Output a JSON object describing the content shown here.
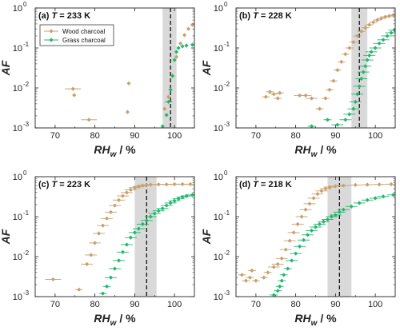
{
  "chart_data": [
    {
      "type": "scatter",
      "panel_label": "(a) T = 233 K",
      "panel_prefix": "(a) ",
      "panel_var": "T",
      "panel_suffix": " = 233 K",
      "xlabel_main": "RH",
      "xlabel_sub": "w",
      "xlabel_unit": " / %",
      "ylabel": "AF",
      "xlim": [
        65,
        105
      ],
      "ylim": [
        0.001,
        1
      ],
      "yscale": "log",
      "xticks": [
        "70",
        "80",
        "90",
        "100"
      ],
      "yticks": [
        "10",
        "10",
        "10",
        "10"
      ],
      "ytick_exponents": [
        "-3",
        "-2",
        "-1",
        "0"
      ],
      "threshold_line_x": 99,
      "shaded_band": [
        97,
        100.5
      ],
      "legend": {
        "placement": "top-left",
        "entries": [
          "Wood charcoal",
          "Grass charcoal"
        ]
      },
      "series": [
        {
          "name": "Wood charcoal",
          "color": "#c8a06e",
          "points": [
            [
              74.5,
              0.0095,
              2
            ],
            [
              74.8,
              0.0066,
              0
            ],
            [
              78.5,
              0.0016,
              2
            ],
            [
              88.5,
              0.013,
              0
            ],
            [
              88.2,
              0.0025,
              0
            ],
            [
              97.5,
              0.003,
              0
            ],
            [
              98.5,
              0.006,
              0
            ],
            [
              99.5,
              0.02,
              0
            ],
            [
              100.5,
              0.06,
              0
            ],
            [
              101.5,
              0.13,
              0
            ],
            [
              102.5,
              0.21,
              0
            ],
            [
              103.5,
              0.3,
              0
            ],
            [
              104.5,
              0.38,
              0
            ]
          ]
        },
        {
          "name": "Grass charcoal",
          "color": "#23b871",
          "points": [
            [
              97.0,
              0.0011,
              0
            ],
            [
              98.0,
              0.0021,
              0
            ],
            [
              98.5,
              0.0045,
              1
            ],
            [
              99.0,
              0.009,
              0
            ],
            [
              99.5,
              0.02,
              0
            ],
            [
              100.0,
              0.05,
              0
            ],
            [
              100.5,
              0.08,
              0
            ],
            [
              101.0,
              0.1,
              0
            ],
            [
              102.0,
              0.11,
              0
            ],
            [
              103.0,
              0.115,
              0
            ],
            [
              104.5,
              0.12,
              0
            ]
          ]
        }
      ]
    },
    {
      "type": "scatter",
      "panel_label": "(b) T = 228 K",
      "panel_prefix": "(b) ",
      "panel_var": "T",
      "panel_suffix": " = 228 K",
      "xlabel_main": "RH",
      "xlabel_sub": "w",
      "xlabel_unit": " / %",
      "ylabel": "AF",
      "xlim": [
        65,
        105
      ],
      "ylim": [
        0.001,
        1
      ],
      "yscale": "log",
      "xticks": [
        "70",
        "80",
        "90",
        "100"
      ],
      "yticks": [
        "10",
        "10",
        "10",
        "10"
      ],
      "ytick_exponents": [
        "-3",
        "-2",
        "-1",
        "0"
      ],
      "threshold_line_x": 96,
      "shaded_band": [
        94,
        98
      ],
      "legend": null,
      "series": [
        {
          "name": "Wood charcoal",
          "color": "#c8a06e",
          "points": [
            [
              72.5,
              0.006,
              1
            ],
            [
              73.5,
              0.008,
              1
            ],
            [
              74.5,
              0.007,
              1
            ],
            [
              75.5,
              0.0055,
              1
            ],
            [
              76.0,
              0.0075,
              1
            ],
            [
              81.0,
              0.0065,
              1.5
            ],
            [
              82.5,
              0.0065,
              1.5
            ],
            [
              84.0,
              0.0055,
              1.5
            ],
            [
              86.0,
              0.003,
              1
            ],
            [
              87.5,
              0.0055,
              1
            ],
            [
              88.5,
              0.009,
              1
            ],
            [
              89.5,
              0.015,
              1
            ],
            [
              90.5,
              0.028,
              1
            ],
            [
              91.5,
              0.045,
              1
            ],
            [
              92.5,
              0.07,
              1
            ],
            [
              93.5,
              0.1,
              1
            ],
            [
              94.5,
              0.14,
              1
            ],
            [
              95.5,
              0.2,
              1
            ],
            [
              96.5,
              0.26,
              1
            ],
            [
              97.5,
              0.32,
              1
            ],
            [
              98.5,
              0.38,
              1
            ],
            [
              99.5,
              0.44,
              1
            ],
            [
              100.5,
              0.5,
              1
            ],
            [
              101.5,
              0.55,
              1
            ],
            [
              102.5,
              0.6,
              1
            ],
            [
              103.5,
              0.63,
              1
            ],
            [
              104.5,
              0.66,
              1
            ]
          ]
        },
        {
          "name": "Grass charcoal",
          "color": "#23b871",
          "points": [
            [
              84.0,
              0.0011,
              1
            ],
            [
              88.0,
              0.0016,
              1
            ],
            [
              90.5,
              0.0012,
              1.5
            ],
            [
              92.5,
              0.0016,
              1.5
            ],
            [
              93.5,
              0.0022,
              1.5
            ],
            [
              94.5,
              0.003,
              1.5
            ],
            [
              95.0,
              0.0045,
              1.5
            ],
            [
              95.5,
              0.007,
              1.5
            ],
            [
              96.0,
              0.011,
              1.5
            ],
            [
              96.5,
              0.017,
              1.5
            ],
            [
              97.0,
              0.025,
              1.5
            ],
            [
              97.5,
              0.035,
              1.5
            ],
            [
              98.0,
              0.05,
              1.5
            ],
            [
              98.5,
              0.065,
              1.5
            ],
            [
              99.0,
              0.08,
              1.5
            ],
            [
              100.0,
              0.1,
              1.5
            ],
            [
              101.0,
              0.13,
              1.5
            ],
            [
              102.0,
              0.16,
              1.5
            ],
            [
              103.0,
              0.2,
              1.5
            ],
            [
              104.0,
              0.24,
              1.5
            ],
            [
              104.8,
              0.28,
              1.5
            ]
          ]
        }
      ]
    },
    {
      "type": "scatter",
      "panel_label": "(c) T = 223 K",
      "panel_prefix": "(c) ",
      "panel_var": "T",
      "panel_suffix": " = 223 K",
      "xlabel_main": "RH",
      "xlabel_sub": "w",
      "xlabel_unit": " / %",
      "ylabel": "AF",
      "xlim": [
        65,
        105
      ],
      "ylim": [
        0.001,
        1
      ],
      "yscale": "log",
      "xticks": [
        "70",
        "80",
        "90",
        "100"
      ],
      "yticks": [
        "10",
        "10",
        "10",
        "10"
      ],
      "ytick_exponents": [
        "-3",
        "-2",
        "-1",
        "0"
      ],
      "threshold_line_x": 93,
      "shaded_band": [
        90,
        95.5
      ],
      "legend": null,
      "series": [
        {
          "name": "Wood charcoal",
          "color": "#c8a06e",
          "points": [
            [
              69.5,
              0.0027,
              2
            ],
            [
              76.0,
              0.0015,
              1
            ],
            [
              78.0,
              0.0065,
              1.5
            ],
            [
              79.0,
              0.011,
              1.5
            ],
            [
              80.0,
              0.022,
              1.5
            ],
            [
              81.0,
              0.038,
              1.5
            ],
            [
              82.0,
              0.06,
              1.5
            ],
            [
              83.0,
              0.09,
              1.5
            ],
            [
              84.0,
              0.13,
              1.5
            ],
            [
              85.0,
              0.19,
              1.5
            ],
            [
              86.0,
              0.26,
              1.5
            ],
            [
              87.0,
              0.33,
              1.5
            ],
            [
              88.0,
              0.4,
              1.5
            ],
            [
              89.0,
              0.47,
              1.5
            ],
            [
              90.0,
              0.53,
              1.5
            ],
            [
              91.0,
              0.57,
              1.5
            ],
            [
              92.0,
              0.6,
              1.5
            ],
            [
              93.0,
              0.62,
              1.5
            ],
            [
              94.0,
              0.63,
              1.5
            ],
            [
              96.0,
              0.64,
              1.5
            ],
            [
              98.0,
              0.64,
              1.5
            ],
            [
              100.0,
              0.65,
              1.5
            ],
            [
              102.0,
              0.65,
              1.5
            ],
            [
              104.0,
              0.65,
              1.5
            ]
          ]
        },
        {
          "name": "Grass charcoal",
          "color": "#23b871",
          "points": [
            [
              82.0,
              0.0012,
              1
            ],
            [
              83.0,
              0.0018,
              1
            ],
            [
              84.0,
              0.003,
              1.5
            ],
            [
              85.0,
              0.005,
              1.5
            ],
            [
              86.0,
              0.008,
              1.5
            ],
            [
              87.0,
              0.013,
              1.5
            ],
            [
              88.0,
              0.02,
              1.5
            ],
            [
              89.0,
              0.03,
              1.5
            ],
            [
              90.0,
              0.04,
              1.5
            ],
            [
              91.0,
              0.05,
              1.5
            ],
            [
              92.0,
              0.065,
              1.5
            ],
            [
              93.0,
              0.08,
              1.5
            ],
            [
              94.0,
              0.1,
              1.5
            ],
            [
              95.0,
              0.12,
              1.5
            ],
            [
              96.0,
              0.14,
              1.5
            ],
            [
              97.0,
              0.16,
              1.5
            ],
            [
              98.0,
              0.19,
              1.5
            ],
            [
              99.0,
              0.22,
              1.5
            ],
            [
              100.0,
              0.25,
              1.5
            ],
            [
              101.0,
              0.28,
              1.5
            ],
            [
              102.0,
              0.31,
              1.5
            ],
            [
              103.0,
              0.33,
              1.5
            ],
            [
              104.5,
              0.35,
              1.5
            ]
          ]
        }
      ]
    },
    {
      "type": "scatter",
      "panel_label": "(d) T = 218 K",
      "panel_prefix": "(d) ",
      "panel_var": "T",
      "panel_suffix": " = 218 K",
      "xlabel_main": "RH",
      "xlabel_sub": "w",
      "xlabel_unit": " / %",
      "ylabel": "AF",
      "xlim": [
        65,
        105
      ],
      "ylim": [
        0.001,
        1
      ],
      "yscale": "log",
      "xticks": [
        "70",
        "80",
        "90",
        "100"
      ],
      "yticks": [
        "10",
        "10",
        "10",
        "10"
      ],
      "ytick_exponents": [
        "-3",
        "-2",
        "-1",
        "0"
      ],
      "threshold_line_x": 91,
      "shaded_band": [
        88,
        94
      ],
      "legend": null,
      "series": [
        {
          "name": "Wood charcoal",
          "color": "#c8a06e",
          "points": [
            [
              66.5,
              0.0035,
              1
            ],
            [
              67.5,
              0.0025,
              1
            ],
            [
              68.5,
              0.003,
              1
            ],
            [
              69.0,
              0.0045,
              1
            ],
            [
              70.0,
              0.0025,
              1
            ],
            [
              72.0,
              0.003,
              1
            ],
            [
              73.0,
              0.004,
              1
            ],
            [
              74.5,
              0.0055,
              1.5
            ],
            [
              75.5,
              0.0065,
              1.5
            ],
            [
              76.5,
              0.009,
              1.5
            ],
            [
              77.5,
              0.015,
              1.5
            ],
            [
              78.5,
              0.025,
              1.5
            ],
            [
              79.5,
              0.04,
              1.5
            ],
            [
              80.5,
              0.065,
              1.5
            ],
            [
              81.5,
              0.1,
              1.5
            ],
            [
              82.5,
              0.15,
              1.5
            ],
            [
              83.5,
              0.21,
              1.5
            ],
            [
              84.5,
              0.29,
              1.5
            ],
            [
              85.5,
              0.37,
              1.5
            ],
            [
              86.5,
              0.44,
              1.5
            ],
            [
              87.5,
              0.5,
              1.5
            ],
            [
              88.5,
              0.55,
              1.5
            ],
            [
              90.0,
              0.58,
              1.5
            ],
            [
              92.0,
              0.6,
              1.5
            ],
            [
              95.0,
              0.62,
              1.5
            ],
            [
              98.0,
              0.63,
              1.5
            ],
            [
              101.0,
              0.64,
              1.5
            ],
            [
              104.0,
              0.65,
              1.5
            ]
          ]
        },
        {
          "name": "Grass charcoal",
          "color": "#23b871",
          "points": [
            [
              74.5,
              0.0011,
              1
            ],
            [
              75.5,
              0.0014,
              1
            ],
            [
              76.0,
              0.0018,
              1
            ],
            [
              76.5,
              0.0025,
              1
            ],
            [
              77.0,
              0.0035,
              1
            ],
            [
              78.0,
              0.005,
              1
            ],
            [
              79.0,
              0.008,
              1.5
            ],
            [
              80.0,
              0.012,
              1.5
            ],
            [
              81.0,
              0.018,
              1.5
            ],
            [
              82.0,
              0.026,
              1.5
            ],
            [
              83.0,
              0.035,
              1.5
            ],
            [
              84.0,
              0.045,
              1.5
            ],
            [
              85.0,
              0.055,
              1.5
            ],
            [
              86.0,
              0.065,
              1.5
            ],
            [
              87.0,
              0.075,
              1.5
            ],
            [
              88.0,
              0.085,
              1.5
            ],
            [
              89.0,
              0.1,
              1.5
            ],
            [
              90.0,
              0.11,
              1.5
            ],
            [
              91.0,
              0.13,
              1.5
            ],
            [
              92.0,
              0.15,
              1.5
            ],
            [
              94.0,
              0.18,
              1.5
            ],
            [
              96.0,
              0.22,
              1.5
            ],
            [
              98.0,
              0.26,
              1.5
            ],
            [
              100.0,
              0.29,
              1.5
            ],
            [
              102.0,
              0.32,
              1.5
            ],
            [
              104.5,
              0.35,
              1.5
            ]
          ]
        }
      ]
    }
  ]
}
